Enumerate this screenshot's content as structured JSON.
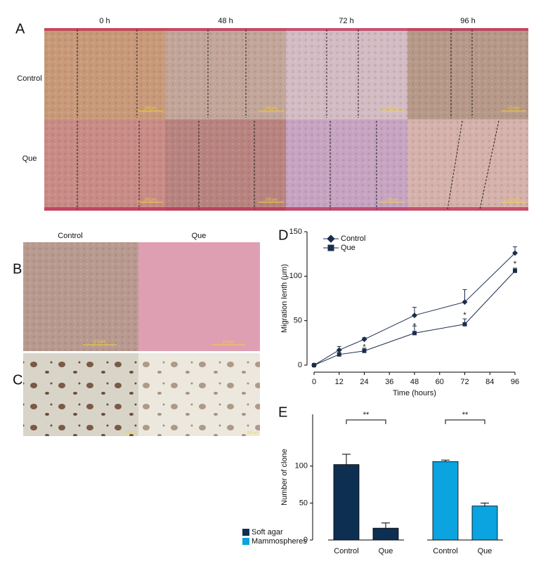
{
  "panel_a": {
    "label": "A",
    "columns": [
      "0 h",
      "48 h",
      "72 h",
      "96 h"
    ],
    "rows": [
      "Control",
      "Que"
    ],
    "scale_bars": [
      [
        "100 μm",
        "100 μm",
        "100 μm",
        "1.0 mm"
      ],
      [
        "100 μm",
        "100 μm",
        "100 μm",
        "1.0 mm"
      ]
    ]
  },
  "panel_b": {
    "label": "B",
    "columns": [
      "Control",
      "Que"
    ],
    "scale_bars": [
      "2.0 mm",
      "2.0 mm"
    ]
  },
  "panel_c": {
    "label": "C",
    "scale_bars": [
      "200 μm",
      "200 μm"
    ]
  },
  "chart_data": [
    {
      "type": "line",
      "label": "D",
      "x": [
        0,
        12,
        24,
        48,
        72,
        96
      ],
      "xlabel": "Time (hours)",
      "ylabel": "Migration lenth (μm)",
      "xlim": [
        0,
        96
      ],
      "xticks": [
        0,
        12,
        24,
        36,
        48,
        60,
        72,
        84,
        96
      ],
      "ylim": [
        0,
        150
      ],
      "yticks": [
        0,
        50,
        100,
        150
      ],
      "series": [
        {
          "name": "Control",
          "color": "#1a2d4d",
          "marker": "diamond",
          "values": [
            0,
            17,
            29,
            56,
            71,
            126
          ],
          "errors": [
            0,
            4,
            2,
            9,
            14,
            7
          ]
        },
        {
          "name": "Que",
          "color": "#1a2d4d",
          "marker": "square",
          "values": [
            0,
            12,
            16,
            36,
            46,
            106
          ],
          "errors": [
            0,
            2,
            3,
            8,
            6,
            3
          ]
        }
      ],
      "annotations": [
        {
          "x": 24,
          "text": "*"
        },
        {
          "x": 48,
          "text": "*"
        },
        {
          "x": 72,
          "text": "*"
        },
        {
          "x": 96,
          "text": "*"
        }
      ]
    },
    {
      "type": "bar",
      "label": "E",
      "categories": [
        "Control",
        "Que",
        "Control",
        "Que"
      ],
      "ylabel": "Number of clone",
      "ylim": [
        0,
        170
      ],
      "yticks": [
        0,
        50,
        100
      ],
      "series": [
        {
          "name": "Soft agar",
          "color": "#0d2f52",
          "values": [
            102,
            16,
            null,
            null
          ],
          "errors": [
            14,
            7,
            null,
            null
          ],
          "significance": "**"
        },
        {
          "name": "Mammospheres",
          "color": "#0ba3e0",
          "values": [
            null,
            null,
            106,
            46
          ],
          "errors": [
            null,
            null,
            2,
            4
          ],
          "significance": "**"
        }
      ]
    }
  ]
}
